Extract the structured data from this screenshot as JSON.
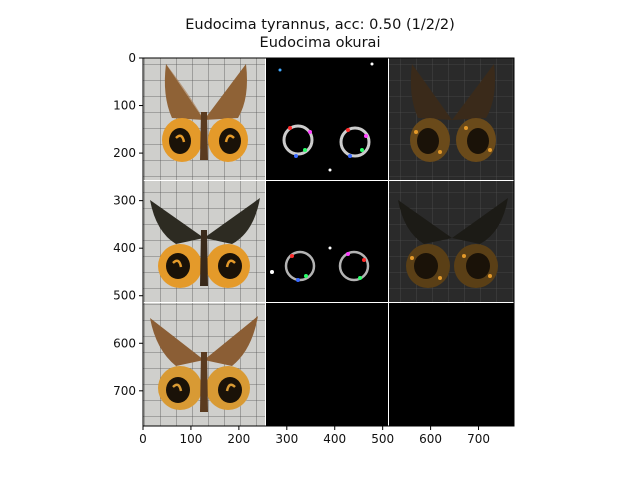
{
  "figure": {
    "title_line1": "Eudocima tyrannus, acc: 0.50 (1/2/2)",
    "title_line2": "Eudocima okurai"
  },
  "axes": {
    "x_ticks": [
      0,
      100,
      200,
      300,
      400,
      500,
      600,
      700
    ],
    "y_ticks": [
      0,
      100,
      200,
      300,
      400,
      500,
      600,
      700
    ],
    "x_range": [
      0,
      774
    ],
    "y_range": [
      0,
      774
    ]
  },
  "colors": {
    "paper_bg": "#c9c9c6",
    "wing_brown": "#8b5e35",
    "wing_dark": "#2d2b22",
    "hindwing_orange": "#e49a2a",
    "tile_black": "#000000"
  }
}
